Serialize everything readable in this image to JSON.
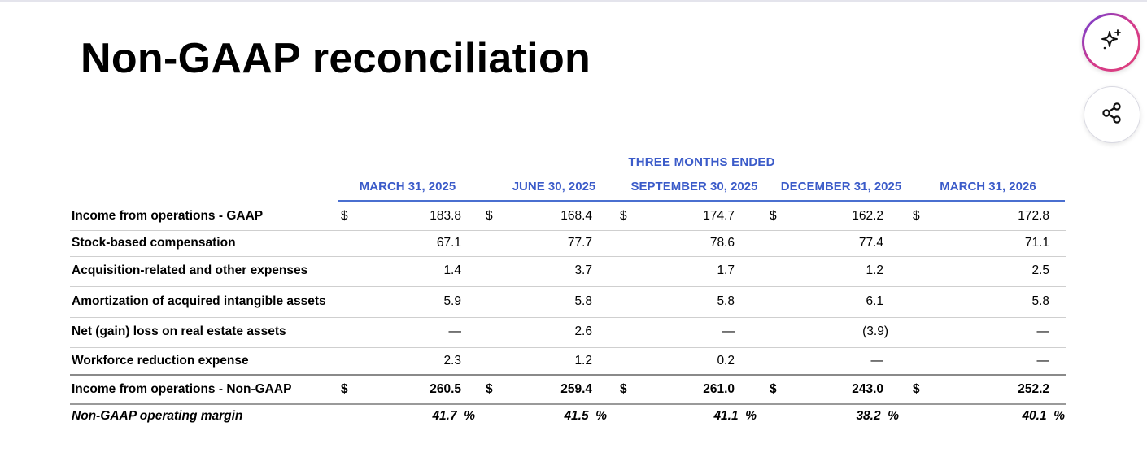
{
  "title": "Non-GAAP reconciliation",
  "icons": {
    "ai": "sparkle-icon",
    "share": "share-icon"
  },
  "colors": {
    "header_blue": "#3b5bc9",
    "ai_ring_gradient": [
      "#6a3fd8",
      "#d23a8c"
    ]
  },
  "table": {
    "period_header": "THREE MONTHS ENDED",
    "columns": [
      "MARCH 31, 2025",
      "JUNE 30, 2025",
      "SEPTEMBER 30, 2025",
      "DECEMBER 31, 2025",
      "MARCH 31, 2026"
    ],
    "currency_symbol": "$",
    "rows": [
      {
        "label": "Income from operations - GAAP",
        "values": [
          "183.8",
          "168.4",
          "174.7",
          "162.2",
          "172.8"
        ],
        "dollar": true
      },
      {
        "label": "Stock-based compensation",
        "values": [
          "67.1",
          "77.7",
          "78.6",
          "77.4",
          "71.1"
        ],
        "dollar": false
      },
      {
        "label": "Acquisition-related and other expenses",
        "values": [
          "1.4",
          "3.7",
          "1.7",
          "1.2",
          "2.5"
        ],
        "dollar": false
      },
      {
        "label": "Amortization of acquired intangible assets",
        "values": [
          "5.9",
          "5.8",
          "5.8",
          "6.1",
          "5.8"
        ],
        "dollar": false
      },
      {
        "label": "Net (gain) loss on real estate assets",
        "values": [
          "—",
          "2.6",
          "—",
          "(3.9)",
          "—"
        ],
        "dollar": false
      },
      {
        "label": "Workforce reduction expense",
        "values": [
          "2.3",
          "1.2",
          "0.2",
          "—",
          "—"
        ],
        "dollar": false
      },
      {
        "label": "Income from operations - Non-GAAP",
        "values": [
          "260.5",
          "259.4",
          "261.0",
          "243.0",
          "252.2"
        ],
        "dollar": true
      },
      {
        "label": "Non-GAAP operating margin",
        "values": [
          "41.7  %",
          "41.5  %",
          "41.1  %",
          "38.2  %",
          "40.1  %"
        ],
        "dollar": false
      }
    ]
  }
}
